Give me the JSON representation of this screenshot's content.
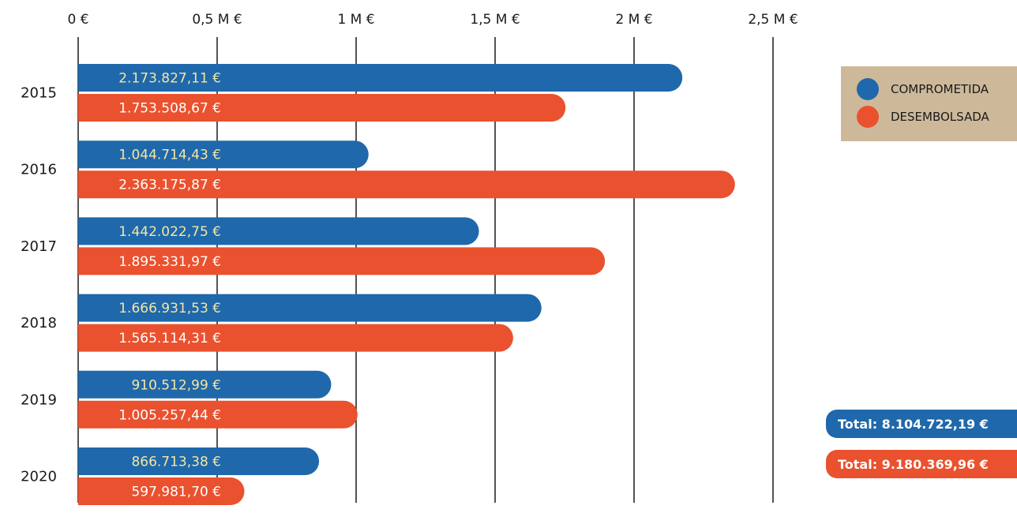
{
  "chart_data": {
    "type": "bar",
    "orientation": "horizontal",
    "categories": [
      "2015",
      "2016",
      "2017",
      "2018",
      "2019",
      "2020"
    ],
    "xlim": [
      0,
      2500000
    ],
    "x_ticks": [
      0,
      500000,
      1000000,
      1500000,
      2000000,
      2500000
    ],
    "x_tick_labels": [
      "0 €",
      "0,5 M €",
      "1 M €",
      "1,5 M €",
      "2 M €",
      "2,5 M €"
    ],
    "grid": "vertical",
    "legend_position": "right",
    "series": [
      {
        "name": "COMPROMETIDA",
        "color": "#1f68ab",
        "label_color": "#f5e6a3",
        "values": [
          2173827.11,
          1044714.43,
          1442022.75,
          1666931.53,
          910512.99,
          866713.38
        ],
        "labels": [
          "2.173.827,11 €",
          "1.044.714,43 €",
          "1.442.022,75 €",
          "1.666.931,53 €",
          "910.512,99 €",
          "866.713,38 €"
        ]
      },
      {
        "name": "DESEMBOLSADA",
        "color": "#ea512e",
        "label_color": "#ffffff",
        "values": [
          1753508.67,
          2363175.87,
          1895331.97,
          1565114.31,
          1005257.44,
          597981.7
        ],
        "labels": [
          "1.753.508,67 €",
          "2.363.175,87 €",
          "1.895.331,97 €",
          "1.565.114,31 €",
          "1.005.257,44 €",
          "597.981,70 €"
        ]
      }
    ],
    "legend_bg": "#cdb99a",
    "totals": [
      {
        "text": "Total: 8.104.722,19 €",
        "color": "#1f68ab"
      },
      {
        "text": "Total: 9.180.369,96 €",
        "color": "#ea512e"
      }
    ]
  }
}
